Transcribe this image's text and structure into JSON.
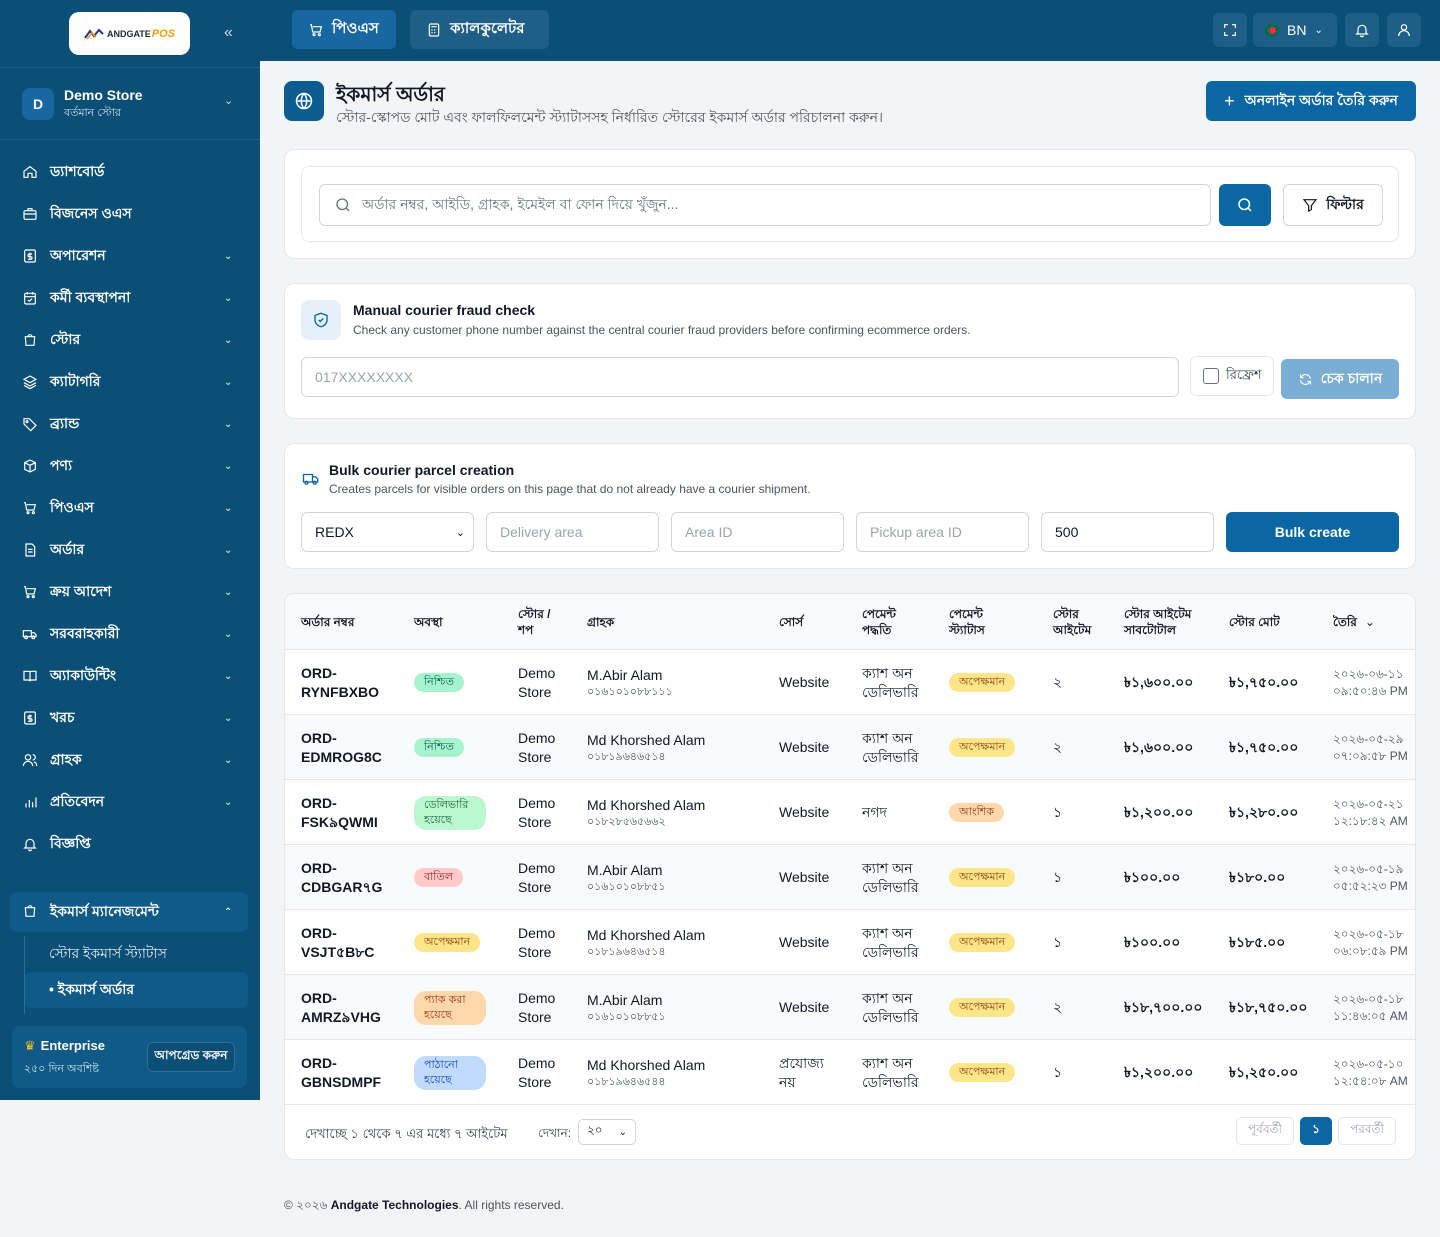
{
  "sidebar": {
    "logo_text": "ANDGATE",
    "logo_pos": "POS",
    "store": {
      "avatar": "D",
      "name": "Demo Store",
      "sub": "বর্তমান স্টোর"
    },
    "items": [
      {
        "label": "ড্যাশবোর্ড",
        "icon": "home-icon",
        "chev": false
      },
      {
        "label": "বিজনেস ওএস",
        "icon": "briefcase-icon",
        "chev": false
      },
      {
        "label": "অপারেশন",
        "icon": "dollar-icon",
        "chev": true
      },
      {
        "label": "কর্মী ব্যবস্থাপনা",
        "icon": "calendar-icon",
        "chev": true
      },
      {
        "label": "স্টোর",
        "icon": "bag-icon",
        "chev": true
      },
      {
        "label": "ক্যাটাগরি",
        "icon": "layers-icon",
        "chev": true
      },
      {
        "label": "ব্র্যান্ড",
        "icon": "tag-icon",
        "chev": true
      },
      {
        "label": "পণ্য",
        "icon": "box-icon",
        "chev": true
      },
      {
        "label": "পিওএস",
        "icon": "cart-icon",
        "chev": true
      },
      {
        "label": "অর্ডার",
        "icon": "file-icon",
        "chev": true
      },
      {
        "label": "ক্রয় আদেশ",
        "icon": "cart-icon",
        "chev": true
      },
      {
        "label": "সরবরাহকারী",
        "icon": "truck-icon",
        "chev": true
      },
      {
        "label": "অ্যাকাউন্টিং",
        "icon": "book-icon",
        "chev": true
      },
      {
        "label": "খরচ",
        "icon": "dollar-icon",
        "chev": true
      },
      {
        "label": "গ্রাহক",
        "icon": "users-icon",
        "chev": true
      },
      {
        "label": "প্রতিবেদন",
        "icon": "chart-icon",
        "chev": true
      },
      {
        "label": "বিজ্ঞপ্তি",
        "icon": "bell-icon",
        "chev": false
      }
    ],
    "ecommerce": {
      "label": "ইকমার্স ম্যানেজমেন্ট",
      "sub": [
        "স্টোর ইকমার্স স্ট্যাটাস",
        "• ইকমার্স অর্ডার"
      ]
    },
    "plan": {
      "title": "Enterprise",
      "sub": "২৫০ দিন অবশিষ্ট",
      "upgrade": "আপগ্রেড করুন"
    }
  },
  "topbar": {
    "pos_label": "পিওএস",
    "calc_label": "ক্যালকুলেটর",
    "lang": "BN"
  },
  "header": {
    "title": "ইকমার্স অর্ডার",
    "subtitle": "স্টোর-স্কোপড মোট এবং ফালফিলমেন্ট স্ট্যাটাসসহ নির্ধারিত স্টোরের ইকমার্স অর্ডার পরিচালনা করুন।",
    "create_label": "অনলাইন অর্ডার তৈরি করুন"
  },
  "search": {
    "placeholder": "অর্ডার নম্বর, আইডি, গ্রাহক, ইমেইল বা ফোন দিয়ে খুঁজুন...",
    "filter_label": "ফিল্টার"
  },
  "fraud": {
    "title": "Manual courier fraud check",
    "sub": "Check any customer phone number against the central courier fraud providers before confirming ecommerce orders.",
    "placeholder": "017XXXXXXXX",
    "refresh_label": "রিফ্রেশ",
    "run_label": "চেক চালান"
  },
  "bulk": {
    "title": "Bulk courier parcel creation",
    "sub": "Creates parcels for visible orders on this page that do not already have a courier shipment.",
    "courier": "REDX",
    "delivery_placeholder": "Delivery area",
    "area_placeholder": "Area ID",
    "pickup_placeholder": "Pickup area ID",
    "weight": "500",
    "button": "Bulk create"
  },
  "table": {
    "headers": [
      "অর্ডার নম্বর",
      "অবস্থা",
      "স্টোর / শপ",
      "গ্রাহক",
      "সোর্স",
      "পেমেন্ট পদ্ধতি",
      "পেমেন্ট স্ট্যাটাস",
      "স্টোর আইটেম",
      "স্টোর আইটেম সাবটোটাল",
      "স্টোর মোট",
      "তৈরি"
    ],
    "rows": [
      {
        "ord1": "ORD-",
        "ord2": "RYNFBXBO",
        "status": "নিশ্চিত",
        "status_class": "b-confirmed",
        "store1": "Demo",
        "store2": "Store",
        "cust": "M.Abir Alam",
        "phone": "০১৬১০১০৮৮১১১",
        "source": "Website",
        "pm1": "ক্যাশ অন",
        "pm2": "ডেলিভারি",
        "pay": "অপেক্ষমান",
        "pay_class": "b-pay-pending",
        "items": "২",
        "subtotal": "৳১,৬০০.০০",
        "total": "৳১,৭৫০.০০",
        "date": "২০২৬-০৬-১১",
        "time": "০৯:৫০:৪৬ PM"
      },
      {
        "ord1": "ORD-",
        "ord2": "EDMROG8C",
        "status": "নিশ্চিত",
        "status_class": "b-confirmed",
        "store1": "Demo",
        "store2": "Store",
        "cust": "Md Khorshed Alam",
        "phone": "০১৮১৯৬৪৬৫১৪",
        "source": "Website",
        "pm1": "ক্যাশ অন",
        "pm2": "ডেলিভারি",
        "pay": "অপেক্ষমান",
        "pay_class": "b-pay-pending",
        "items": "২",
        "subtotal": "৳১,৬০০.০০",
        "total": "৳১,৭৫০.০০",
        "date": "২০২৬-০৫-২৯",
        "time": "০৭:০৯:৫৮ PM"
      },
      {
        "ord1": "ORD-",
        "ord2": "FSK৯QWMI",
        "status": "ডেলিভারি হয়েছে",
        "status_class": "b-delivered",
        "store1": "Demo",
        "store2": "Store",
        "cust": "Md Khorshed Alam",
        "phone": "০১৮২৮৫৬৫৬৬২",
        "source": "Website",
        "pm1": "নগদ",
        "pm2": "",
        "pay": "আংশিক",
        "pay_class": "b-pay-partial",
        "items": "১",
        "subtotal": "৳১,২০০.০০",
        "total": "৳১,২৮০.০০",
        "date": "২০২৬-০৫-২১",
        "time": "১২:১৮:৪২ AM"
      },
      {
        "ord1": "ORD-",
        "ord2": "CDBGAR৭G",
        "status": "বাতিল",
        "status_class": "b-cancel",
        "store1": "Demo",
        "store2": "Store",
        "cust": "M.Abir Alam",
        "phone": "০১৬১০১০৮৮৫১",
        "source": "Website",
        "pm1": "ক্যাশ অন",
        "pm2": "ডেলিভারি",
        "pay": "অপেক্ষমান",
        "pay_class": "b-pay-pending",
        "items": "১",
        "subtotal": "৳১০০.০০",
        "total": "৳১৮০.০০",
        "date": "২০২৬-০৫-১৯",
        "time": "০৫:৫২:২৩ PM"
      },
      {
        "ord1": "ORD-",
        "ord2": "VSJT৫B৮C",
        "status": "অপেক্ষমান",
        "status_class": "b-pending",
        "store1": "Demo",
        "store2": "Store",
        "cust": "Md Khorshed Alam",
        "phone": "০১৮১৯৬৪৬৫১৪",
        "source": "Website",
        "pm1": "ক্যাশ অন",
        "pm2": "ডেলিভারি",
        "pay": "অপেক্ষমান",
        "pay_class": "b-pay-pending",
        "items": "১",
        "subtotal": "৳১০০.০০",
        "total": "৳১৮৫.০০",
        "date": "২০২৬-০৫-১৮",
        "time": "০৬:০৮:৫৯ PM"
      },
      {
        "ord1": "ORD-",
        "ord2": "AMRZ৯VHG",
        "status": "প্যাক করা হয়েছে",
        "status_class": "b-packed",
        "store1": "Demo",
        "store2": "Store",
        "cust": "M.Abir Alam",
        "phone": "০১৬১০১০৮৮৫১",
        "source": "Website",
        "pm1": "ক্যাশ অন",
        "pm2": "ডেলিভারি",
        "pay": "অপেক্ষমান",
        "pay_class": "b-pay-pending",
        "items": "২",
        "subtotal": "৳১৮,৭০০.০০",
        "total": "৳১৮,৭৫০.০০",
        "date": "২০২৬-০৫-১৮",
        "time": "১১:৪৬:০৫ AM"
      },
      {
        "ord1": "ORD-",
        "ord2": "GBNSDMPF",
        "status": "পাঠানো হয়েছে",
        "status_class": "b-sent",
        "store1": "Demo",
        "store2": "Store",
        "cust": "Md Khorshed Alam",
        "phone": "০১৮১৯৬৪৬৫৪৪",
        "source": "প্রযোজ্য নয়",
        "pm1": "ক্যাশ অন",
        "pm2": "ডেলিভারি",
        "pay": "অপেক্ষমান",
        "pay_class": "b-pay-pending",
        "items": "১",
        "subtotal": "৳১,২০০.০০",
        "total": "৳১,২৫০.০০",
        "date": "২০২৬-০৫-১০",
        "time": "১২:৫৪:০৮ AM"
      }
    ],
    "showing": "দেখাচ্ছে ১ থেকে ৭ এর মধ্যে ৭ আইটেম",
    "show_label": "দেখান:",
    "per_page": "২০",
    "prev": "পূর্ববর্তী",
    "current": "১",
    "next": "পরবর্তী"
  },
  "footer": {
    "copy": "© ২০২৬",
    "company": "Andgate Technologies",
    "rights": ". All rights reserved."
  }
}
